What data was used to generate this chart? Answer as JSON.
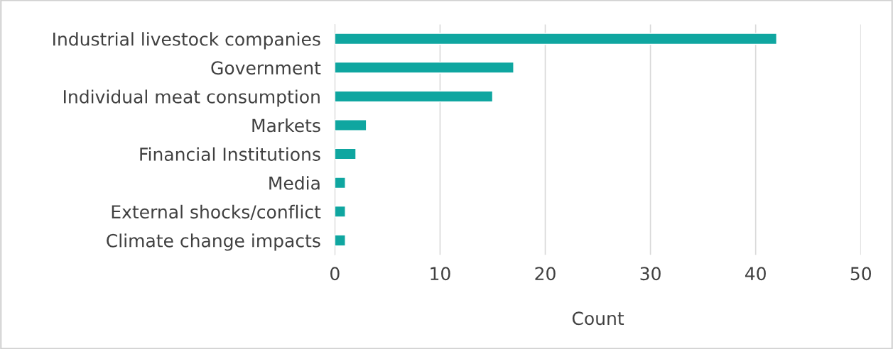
{
  "chart_data": {
    "type": "bar",
    "orientation": "horizontal",
    "xlabel": "Count",
    "categories": [
      "Industrial livestock companies",
      "Government",
      "Individual meat consumption",
      "Markets",
      "Financial Institutions",
      "Media",
      "External shocks/conflict",
      "Climate change impacts"
    ],
    "values": [
      42,
      17,
      15,
      3,
      2,
      1,
      1,
      1
    ],
    "color": "#0fa6a0",
    "xlim": [
      0,
      50
    ],
    "xticks": [
      0,
      10,
      20,
      30,
      40,
      50
    ],
    "grid": "x",
    "legend": false
  }
}
